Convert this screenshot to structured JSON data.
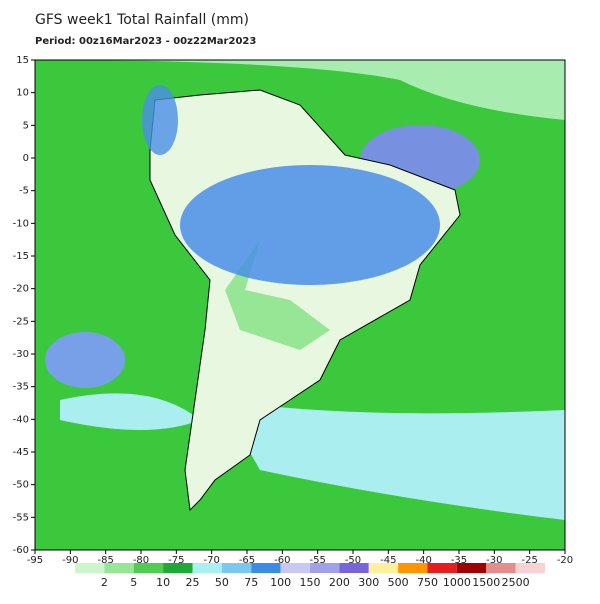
{
  "header": {
    "title": "GFS week1 Total Rainfall (mm)",
    "period": "Period: 00z16Mar2023 - 00z22Mar2023"
  },
  "map": {
    "lat_range": [
      15,
      -60
    ],
    "lon_range": [
      -95,
      -20
    ],
    "lat_ticks": [
      15,
      10,
      5,
      0,
      -5,
      -10,
      -15,
      -20,
      -25,
      -30,
      -35,
      -40,
      -45,
      -50,
      -55,
      -60
    ],
    "lon_ticks": [
      -95,
      -90,
      -85,
      -80,
      -75,
      -70,
      -65,
      -60,
      -55,
      -50,
      -45,
      -40,
      -35,
      -30,
      -25,
      -20
    ]
  },
  "legend": {
    "labels": [
      2,
      5,
      10,
      25,
      50,
      75,
      100,
      150,
      200,
      300,
      500,
      750,
      1000,
      1500,
      2500
    ],
    "colors": [
      "#ccf5cc",
      "#96e696",
      "#50cd50",
      "#1eaa32",
      "#aaf0f0",
      "#78c8f0",
      "#3c8ce6",
      "#c8c8f5",
      "#a0a0eb",
      "#7864dc",
      "#fff0a0",
      "#ff9600",
      "#e61e1e",
      "#a00000",
      "#e68c8c",
      "#fad2d2"
    ]
  }
}
